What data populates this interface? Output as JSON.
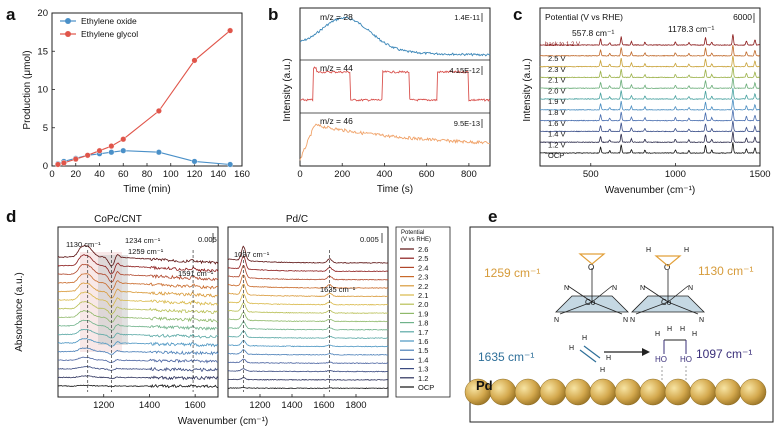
{
  "panel_labels": [
    "a",
    "b",
    "c",
    "d",
    "e"
  ],
  "chart_data": [
    {
      "panel": "a",
      "type": "line",
      "xlabel": "Time (min)",
      "ylabel": "Production (μmol)",
      "xlim": [
        0,
        160
      ],
      "ylim": [
        0,
        20
      ],
      "xticks": [
        "0",
        "20",
        "40",
        "60",
        "80",
        "100",
        "120",
        "140",
        "160"
      ],
      "yticks": [
        "0",
        "5",
        "10",
        "15",
        "20"
      ],
      "legend_position": "top-left",
      "series": [
        {
          "name": "Ethylene oxide",
          "color": "#4a90c8",
          "x": [
            5,
            10,
            20,
            30,
            40,
            50,
            60,
            90,
            120,
            150
          ],
          "y": [
            0.3,
            0.6,
            1.0,
            1.4,
            1.6,
            1.8,
            2.0,
            1.8,
            0.6,
            0.2
          ]
        },
        {
          "name": "Ethylene glycol",
          "color": "#e0554a",
          "x": [
            5,
            10,
            20,
            30,
            40,
            50,
            60,
            90,
            120,
            150
          ],
          "y": [
            0.2,
            0.4,
            0.9,
            1.4,
            2.0,
            2.6,
            3.5,
            7.2,
            13.8,
            17.7
          ]
        }
      ]
    },
    {
      "panel": "b",
      "type": "line",
      "xlabel": "Time (s)",
      "ylabel": "Intensity (a.u.)",
      "xlim": [
        0,
        900
      ],
      "xticks": [
        "0",
        "200",
        "400",
        "600",
        "800"
      ],
      "traces": [
        {
          "name": "m/z = 28",
          "scale": "1.4E-11",
          "color": "#3a86b8"
        },
        {
          "name": "m/z = 44",
          "scale": "4.15E-12",
          "color": "#d9534f"
        },
        {
          "name": "m/z = 46",
          "scale": "9.5E-13",
          "color": "#f0a36a"
        }
      ]
    },
    {
      "panel": "c",
      "type": "line",
      "xlabel": "Wavenumber (cm⁻¹)",
      "ylabel": "Intensity (a.u.)",
      "xlim": [
        200,
        1500
      ],
      "xticks": [
        "500",
        "1000",
        "1500"
      ],
      "legend_title": "Potential (V vs RHE)",
      "scale_label": "6000",
      "annotations": [
        "557.8 cm⁻¹",
        "1178.3 cm⁻¹"
      ],
      "back_label": "back to 1.2 V",
      "potentials": [
        "2.5 V",
        "2.3 V",
        "2.1 V",
        "2.0 V",
        "1.9 V",
        "1.8 V",
        "1.6 V",
        "1.4 V",
        "1.2 V",
        "OCP"
      ]
    },
    {
      "panel": "d",
      "type": "line",
      "ylabel": "Absorbance (a.u.)",
      "xlabel": "Wavenumber (cm⁻¹)",
      "subplots": [
        {
          "title": "CoPc/CNT",
          "xlim": [
            1000,
            1700
          ],
          "xticks": [
            "1200",
            "1400",
            "1600"
          ],
          "scale_label": "0.005",
          "annotations": [
            "1130 cm⁻¹",
            "1234 cm⁻¹",
            "1259 cm⁻¹",
            "1591 cm⁻¹"
          ]
        },
        {
          "title": "Pd/C",
          "xlim": [
            1000,
            2000
          ],
          "xticks": [
            "1200",
            "1400",
            "1600",
            "1800"
          ],
          "scale_label": "0.005",
          "annotations": [
            "1097 cm⁻¹",
            "1635 cm⁻¹"
          ]
        }
      ],
      "legend_title_1": "Potential",
      "legend_title_2": "(V vs RHE)",
      "potentials": [
        "2.6",
        "2.5",
        "2.4",
        "2.3",
        "2.2",
        "2.1",
        "2.0",
        "1.9",
        "1.8",
        "1.7",
        "1.6",
        "1.5",
        "1.4",
        "1.3",
        "1.2",
        "OCP"
      ]
    },
    {
      "panel": "e",
      "type": "diagram",
      "labels": [
        "1259 cm⁻¹",
        "1130 cm⁻¹",
        "1635 cm⁻¹",
        "1097 cm⁻¹"
      ],
      "metal_label": "Pd",
      "atoms": [
        "Co",
        "N",
        "O",
        "H",
        "HO"
      ]
    }
  ]
}
